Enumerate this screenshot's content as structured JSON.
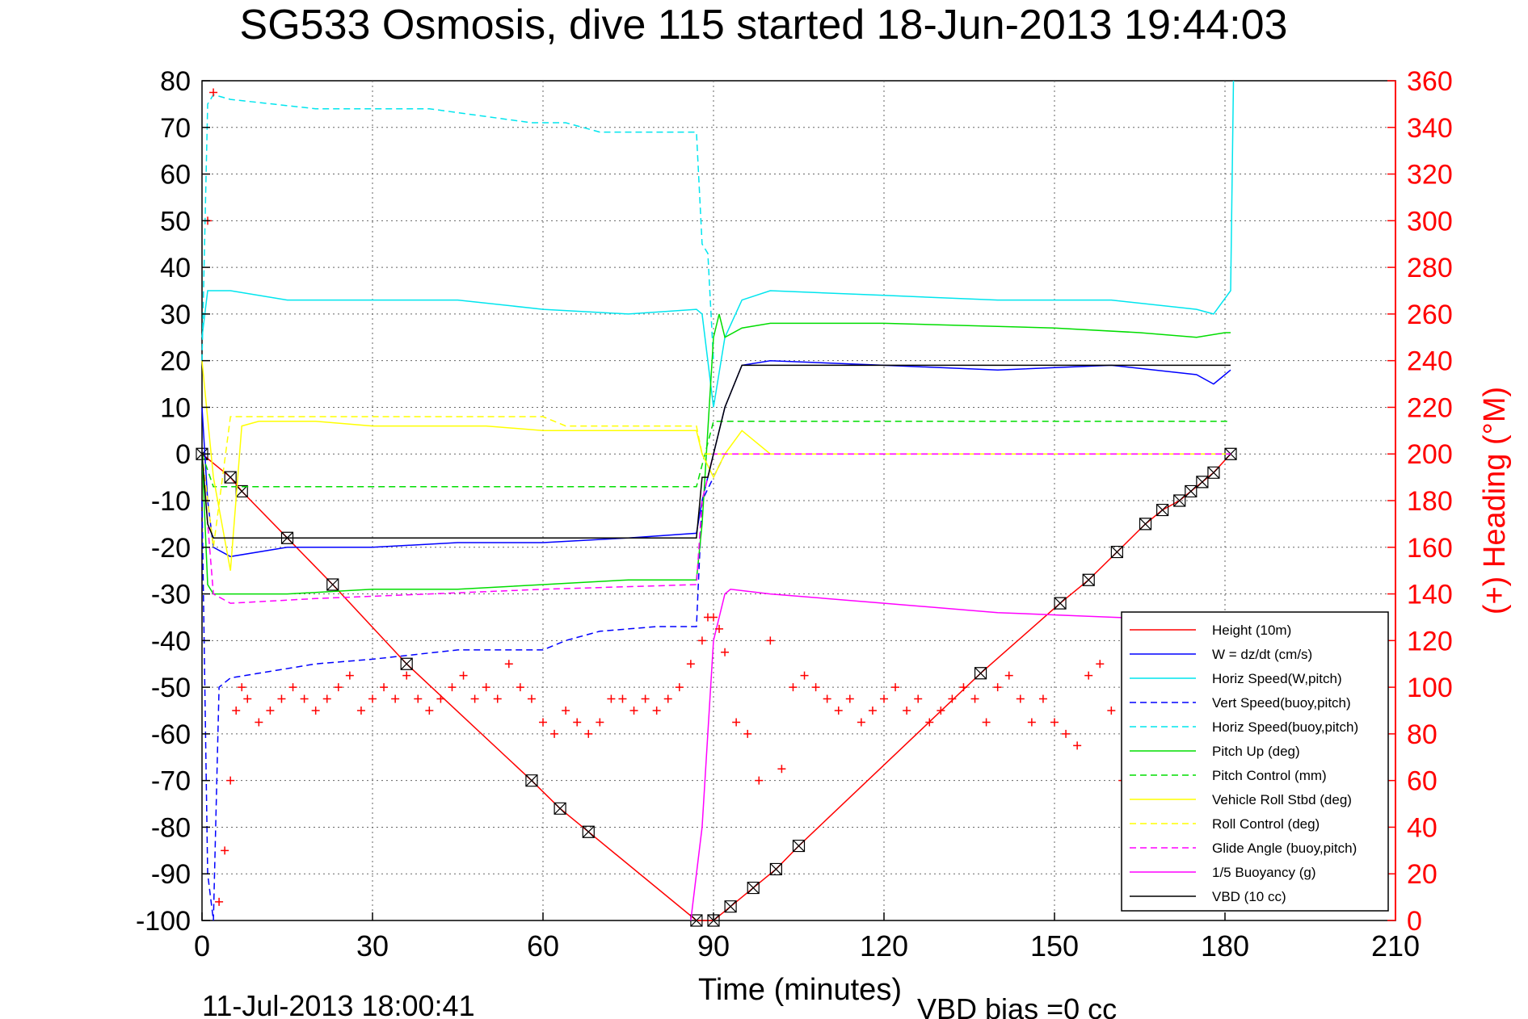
{
  "chart_data": {
    "type": "line",
    "title": "SG533 Osmosis, dive 115 started 18-Jun-2013 19:44:03",
    "xlabel": "Time (minutes)",
    "ylabel": "",
    "y2label": "(+) Heading (°M)",
    "footer_left": "11-Jul-2013 18:00:41",
    "footer_right": "VBD bias =0 cc",
    "xlim": [
      0,
      210
    ],
    "ylim": [
      -100,
      80
    ],
    "y2lim": [
      0,
      360
    ],
    "xticks": [
      0,
      30,
      60,
      90,
      120,
      150,
      180,
      210
    ],
    "yticks": [
      -100,
      -90,
      -80,
      -70,
      -60,
      -50,
      -40,
      -30,
      -20,
      -10,
      0,
      10,
      20,
      30,
      40,
      50,
      60,
      70,
      80
    ],
    "y2ticks": [
      0,
      20,
      40,
      60,
      80,
      100,
      120,
      140,
      160,
      180,
      200,
      220,
      240,
      260,
      280,
      300,
      320,
      340,
      360
    ],
    "grid": true,
    "legend_position": "bottom-right",
    "series": [
      {
        "name": "Height (10m)",
        "color": "#ff0000",
        "style": "solid",
        "marker": "box-x",
        "axis": "left",
        "x": [
          0,
          5,
          7,
          15,
          23,
          36,
          58,
          63,
          68,
          87,
          90,
          93,
          97,
          101,
          105,
          137,
          151,
          156,
          161,
          166,
          169,
          172,
          174,
          176,
          178,
          181
        ],
        "y": [
          0,
          -5,
          -8,
          -18,
          -28,
          -45,
          -70,
          -76,
          -81,
          -100,
          -100,
          -97,
          -93,
          -89,
          -84,
          -47,
          -32,
          -27,
          -21,
          -15,
          -12,
          -10,
          -8,
          -6,
          -4,
          0
        ]
      },
      {
        "name": "W = dz/dt (cm/s)",
        "color": "#0000ff",
        "style": "solid",
        "axis": "left",
        "x": [
          0,
          1,
          2,
          5,
          15,
          30,
          45,
          60,
          75,
          87,
          88,
          90,
          92,
          95,
          100,
          120,
          140,
          160,
          175,
          178,
          180,
          181
        ],
        "y": [
          10,
          -10,
          -20,
          -22,
          -20,
          -20,
          -19,
          -19,
          -18,
          -17,
          -10,
          0,
          10,
          19,
          20,
          19,
          18,
          19,
          17,
          15,
          17,
          18
        ]
      },
      {
        "name": "Horiz Speed(W,pitch)",
        "color": "#00e5ee",
        "style": "solid",
        "axis": "left",
        "x": [
          0,
          1,
          2,
          5,
          15,
          30,
          45,
          60,
          75,
          87,
          88,
          90,
          92,
          95,
          100,
          120,
          140,
          160,
          175,
          178,
          181,
          181.5
        ],
        "y": [
          25,
          35,
          35,
          35,
          33,
          33,
          33,
          31,
          30,
          31,
          30,
          10,
          25,
          33,
          35,
          34,
          33,
          33,
          31,
          30,
          35,
          80
        ]
      },
      {
        "name": "Vert Speed(buoy,pitch)",
        "color": "#0000ff",
        "style": "dashed",
        "axis": "left",
        "x": [
          0,
          1,
          2,
          3,
          5,
          10,
          20,
          30,
          45,
          60,
          64,
          70,
          80,
          87,
          88,
          90,
          92
        ],
        "y": [
          -10,
          -90,
          -100,
          -50,
          -48,
          -47,
          -45,
          -44,
          -42,
          -42,
          -40,
          -38,
          -37,
          -37,
          -10,
          -5,
          0
        ]
      },
      {
        "name": "Horiz Speed(buoy,pitch)",
        "color": "#00e5ee",
        "style": "dashed",
        "axis": "left",
        "x": [
          0,
          1,
          2,
          5,
          20,
          40,
          58,
          64,
          70,
          80,
          87,
          88,
          89,
          90
        ],
        "y": [
          20,
          75,
          77,
          76,
          74,
          74,
          71,
          71,
          69,
          69,
          69,
          45,
          43,
          20
        ]
      },
      {
        "name": "Pitch Up (deg)",
        "color": "#00dd00",
        "style": "solid",
        "axis": "left",
        "x": [
          0,
          1,
          2,
          5,
          15,
          30,
          45,
          60,
          75,
          87,
          88,
          90,
          91,
          92,
          95,
          100,
          120,
          150,
          165,
          175,
          180,
          181
        ],
        "y": [
          0,
          -28,
          -30,
          -30,
          -30,
          -29,
          -29,
          -28,
          -27,
          -27,
          -15,
          25,
          30,
          25,
          27,
          28,
          28,
          27,
          26,
          25,
          26,
          26
        ]
      },
      {
        "name": "Pitch Control (mm)",
        "color": "#00dd00",
        "style": "dashed",
        "axis": "left",
        "x": [
          0,
          2,
          5,
          60,
          87,
          90,
          91,
          95,
          100,
          150,
          181
        ],
        "y": [
          0,
          -7,
          -7,
          -7,
          -7,
          7,
          7,
          7,
          7,
          7,
          7
        ]
      },
      {
        "name": "Vehicle Roll Stbd (deg)",
        "color": "#ffff00",
        "style": "solid",
        "axis": "left",
        "x": [
          0,
          2,
          5,
          7,
          10,
          20,
          30,
          40,
          50,
          60,
          70,
          80,
          87,
          88,
          90,
          92,
          95,
          100,
          120,
          150,
          170,
          181
        ],
        "y": [
          20,
          -5,
          -25,
          6,
          7,
          7,
          6,
          6,
          6,
          5,
          5,
          5,
          5,
          0,
          -5,
          0,
          5,
          0,
          0,
          0,
          0,
          0
        ]
      },
      {
        "name": "Roll Control (deg)",
        "color": "#ffff00",
        "style": "dashed",
        "axis": "left",
        "x": [
          0,
          2,
          5,
          30,
          60,
          64,
          87,
          88,
          92,
          100,
          150,
          181
        ],
        "y": [
          0,
          -20,
          8,
          8,
          8,
          6,
          6,
          0,
          0,
          0,
          0,
          0
        ]
      },
      {
        "name": "Glide Angle (buoy,pitch)",
        "color": "#ff00ff",
        "style": "dashed",
        "axis": "left",
        "x": [
          0,
          2,
          5,
          20,
          40,
          60,
          87,
          88,
          90,
          100,
          181
        ],
        "y": [
          0,
          -30,
          -32,
          -31,
          -30,
          -29,
          -28,
          -10,
          0,
          0,
          0
        ]
      },
      {
        "name": "1/5 Buoyancy (g)",
        "color": "#ff00ff",
        "style": "solid",
        "axis": "left",
        "x": [
          86,
          88,
          90,
          92,
          93,
          100,
          120,
          140,
          160,
          181
        ],
        "y": [
          -100,
          -80,
          -40,
          -30,
          -29,
          -30,
          -32,
          -34,
          -35,
          -36
        ]
      },
      {
        "name": "VBD (10 cc)",
        "color": "#000000",
        "style": "solid",
        "axis": "left",
        "x": [
          0,
          1,
          2,
          5,
          87,
          88,
          89,
          90,
          92,
          95,
          181
        ],
        "y": [
          0,
          -15,
          -18,
          -18,
          -18,
          -5,
          -5,
          0,
          10,
          19,
          19
        ]
      },
      {
        "name": "Heading",
        "color": "#ff0000",
        "style": "markers-plus",
        "axis": "right",
        "x": [
          1,
          2,
          3,
          4,
          5,
          6,
          7,
          8,
          10,
          12,
          14,
          16,
          18,
          20,
          22,
          24,
          26,
          28,
          30,
          32,
          34,
          36,
          38,
          40,
          42,
          44,
          46,
          48,
          50,
          52,
          54,
          56,
          58,
          60,
          62,
          64,
          66,
          68,
          70,
          72,
          74,
          76,
          78,
          80,
          82,
          84,
          86,
          88,
          89,
          90,
          91,
          92,
          94,
          96,
          98,
          100,
          102,
          104,
          106,
          108,
          110,
          112,
          114,
          116,
          118,
          120,
          122,
          124,
          126,
          128,
          130,
          132,
          134,
          136,
          138,
          140,
          142,
          144,
          146,
          148,
          150,
          152,
          154,
          156,
          158,
          160,
          162
        ],
        "y": [
          300,
          355,
          8,
          30,
          60,
          90,
          100,
          95,
          85,
          90,
          95,
          100,
          95,
          90,
          95,
          100,
          105,
          90,
          95,
          100,
          95,
          105,
          95,
          90,
          95,
          100,
          105,
          95,
          100,
          95,
          110,
          100,
          95,
          85,
          80,
          90,
          85,
          80,
          85,
          95,
          95,
          90,
          95,
          90,
          95,
          100,
          110,
          120,
          130,
          130,
          125,
          115,
          85,
          80,
          60,
          120,
          65,
          100,
          105,
          100,
          95,
          90,
          95,
          85,
          90,
          95,
          100,
          90,
          95,
          85,
          90,
          95,
          100,
          95,
          85,
          100,
          105,
          95,
          85,
          95,
          85,
          80,
          75,
          105,
          110,
          90,
          60
        ]
      }
    ]
  }
}
